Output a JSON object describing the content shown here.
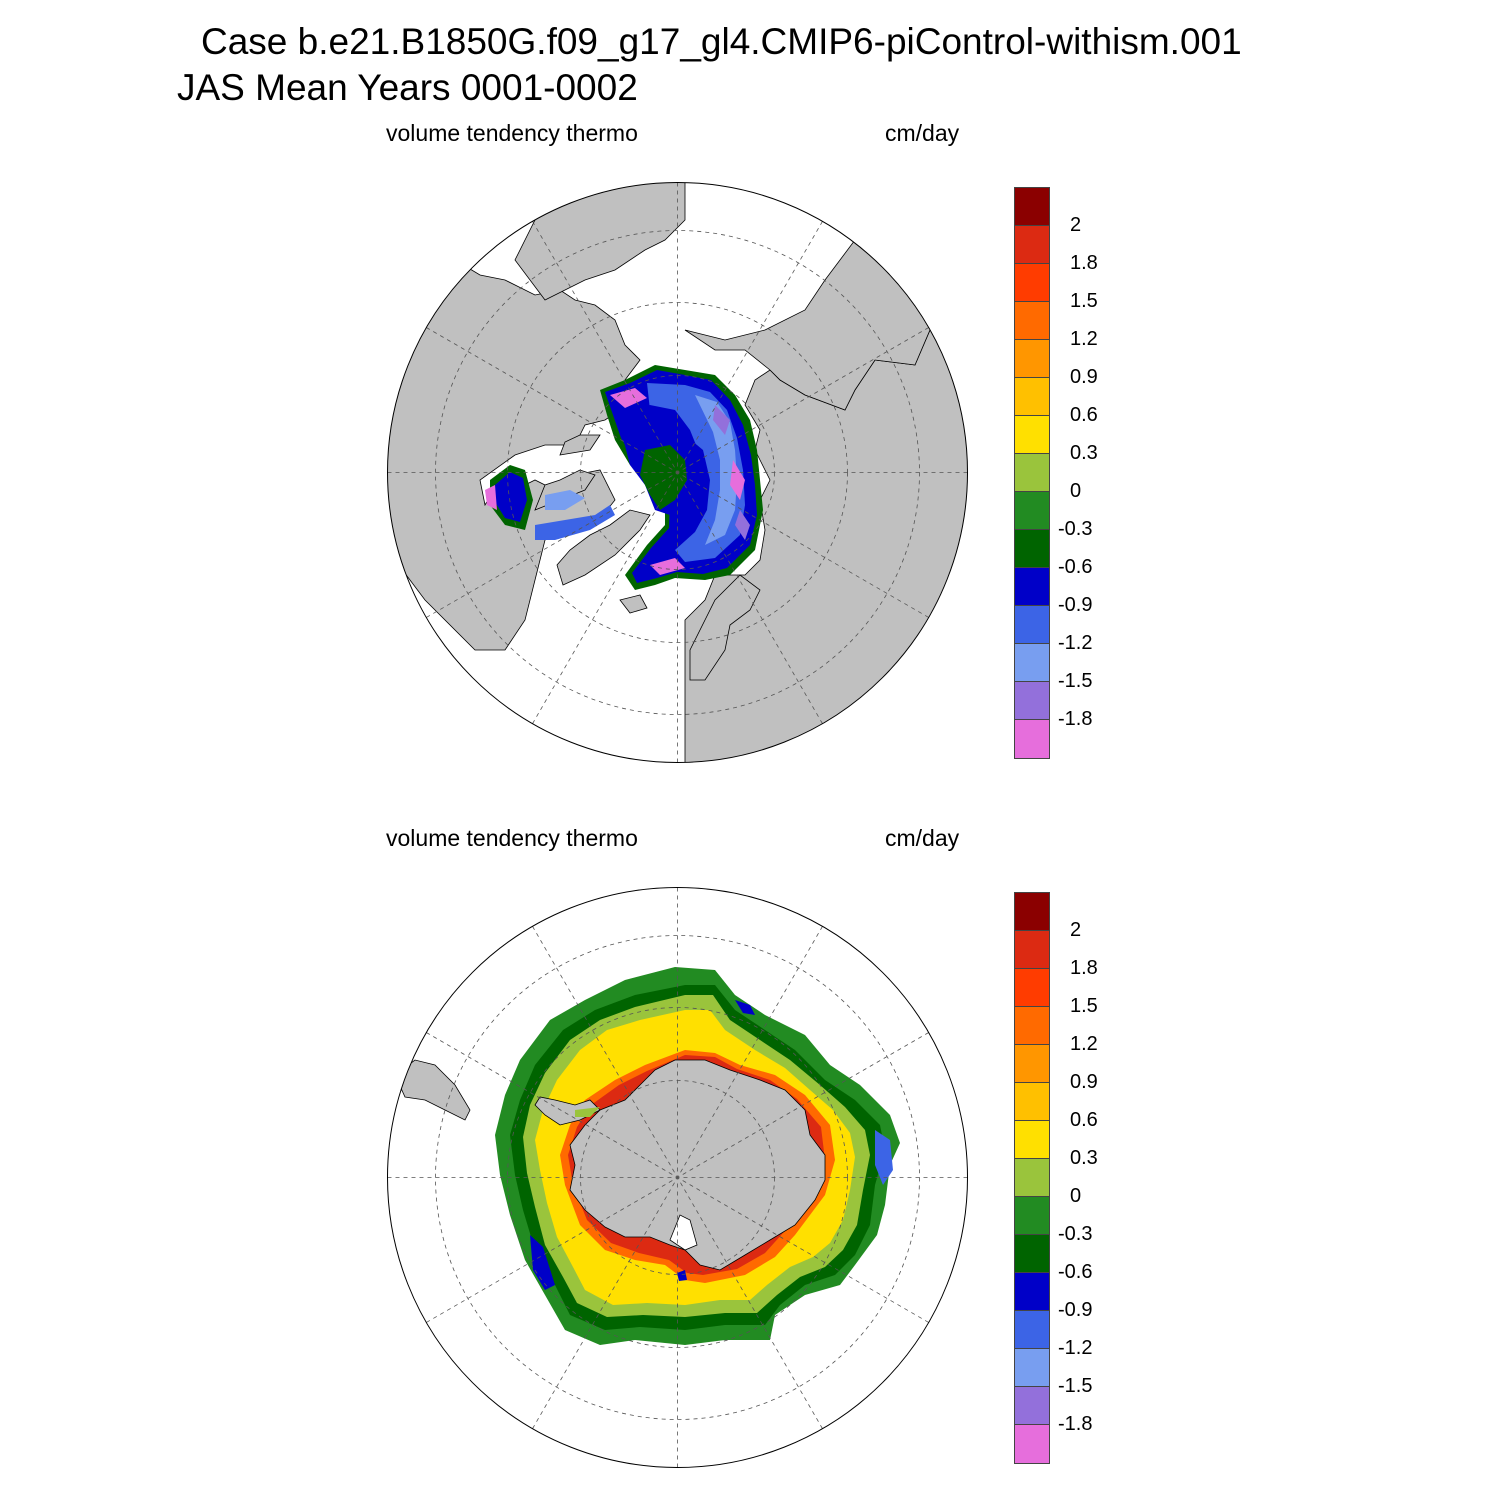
{
  "header": {
    "title_line1": "Case b.e21.B1850G.f09_g17_gl4.CMIP6-piControl-withism.001",
    "title_line2": "JAS Mean   Years 0001-0002"
  },
  "panels": [
    {
      "id": "north",
      "variable": "volume tendency thermo",
      "units": "cm/day",
      "hemisphere": "north"
    },
    {
      "id": "south",
      "variable": "volume tendency thermo",
      "units": "cm/day",
      "hemisphere": "south"
    }
  ],
  "colorbar": {
    "levels": [
      "2",
      "1.8",
      "1.5",
      "1.2",
      "0.9",
      "0.6",
      "0.3",
      "0",
      "-0.3",
      "-0.6",
      "-0.9",
      "-1.2",
      "-1.5",
      "-1.8"
    ],
    "colors": [
      "#8b0000",
      "#dc2a12",
      "#ff3c00",
      "#ff6a00",
      "#ff9600",
      "#ffc000",
      "#ffe000",
      "#9ac43c",
      "#228b22",
      "#006400",
      "#0000c8",
      "#3c64e6",
      "#789ef0",
      "#9370db",
      "#e66edc"
    ]
  },
  "map_colors": {
    "land": "#c0c0c0",
    "ocean": "#ffffff",
    "grid": "#555555"
  }
}
